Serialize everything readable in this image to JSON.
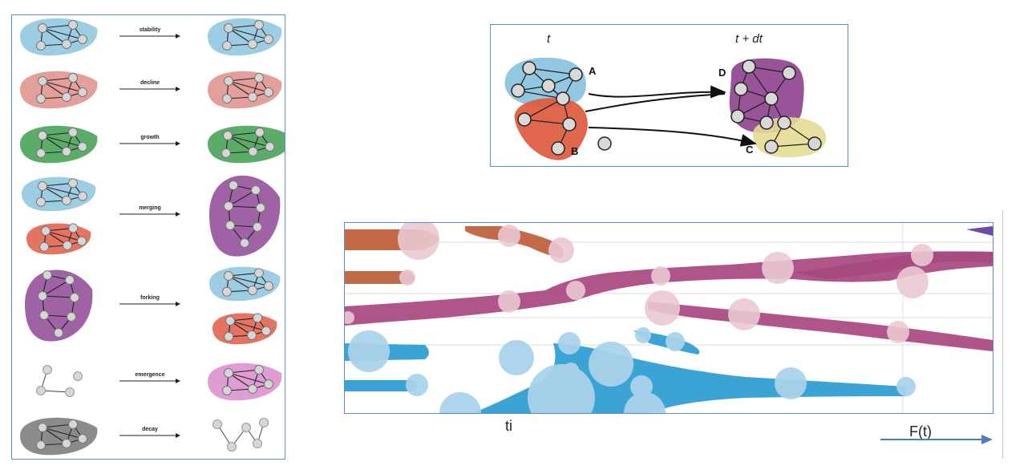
{
  "transitions": [
    {
      "label": "stability",
      "before": "#8cc4de",
      "after": "#8cc4de"
    },
    {
      "label": "decline",
      "before": "#e08e88",
      "after": "#e08e88"
    },
    {
      "label": "growth",
      "before": "#3f9e4f",
      "after": "#3f9e4f"
    },
    {
      "label": "merging",
      "before": "#8cc4de",
      "before2": "#e05a45",
      "after": "#8e4795"
    },
    {
      "label": "forking",
      "before": "#8e4795",
      "after": "#8cc4de",
      "after2": "#e05a45"
    },
    {
      "label": "emergence",
      "before": "none",
      "after": "#d98ccc"
    },
    {
      "label": "decay",
      "before": "#777777",
      "after": "none"
    }
  ],
  "temporal_diagram": {
    "time_left": "t",
    "time_right": "t + dt",
    "labels": {
      "a": "A",
      "b": "B",
      "c": "C",
      "d": "D"
    },
    "colors": {
      "a": "#86c1de",
      "b": "#de5a3d",
      "c": "#e3dc96",
      "d": "#934a93"
    }
  },
  "stream": {
    "ti": "ti",
    "ft": "F(t)",
    "colors": {
      "brown": "#c0633f",
      "purple": "#ab4c83",
      "blue": "#3ba4d4",
      "bubble": "#e8c8d0"
    }
  }
}
